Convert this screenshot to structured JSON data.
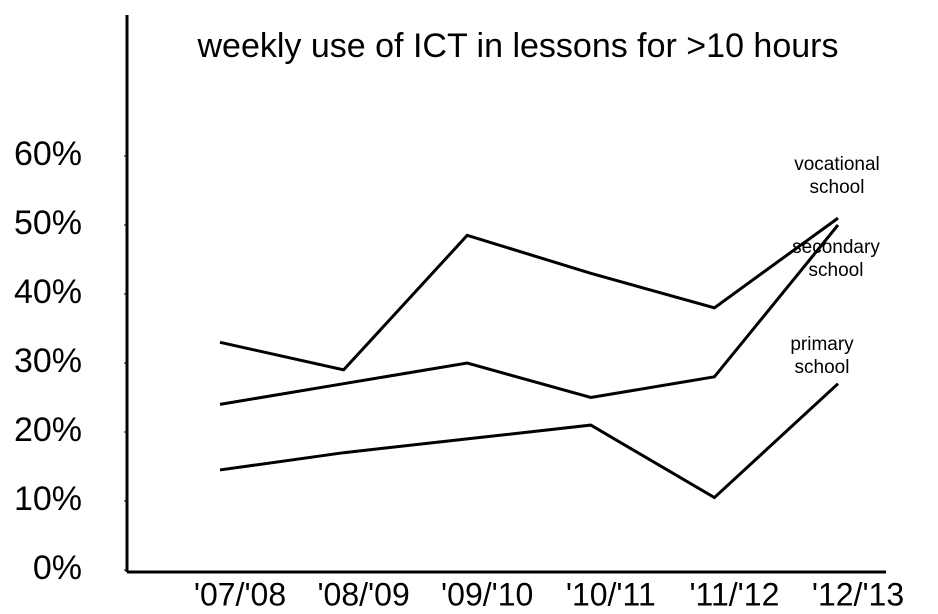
{
  "chart_data": {
    "type": "line",
    "title": "weekly use of ICT in lessons for >10 hours",
    "categories": [
      "'07/'08",
      "'08/'09",
      "'09/'10",
      "'10/'11",
      "'11/'12",
      "'12/'13"
    ],
    "series": [
      {
        "name": "vocational school",
        "color": "#000000",
        "values": [
          33,
          29,
          48.5,
          43,
          38,
          51
        ]
      },
      {
        "name": "secondary school",
        "color": "#000000",
        "values": [
          24,
          27,
          30,
          25,
          28,
          50
        ]
      },
      {
        "name": "primary school",
        "color": "#000000",
        "values": [
          14.5,
          17,
          19,
          21,
          10.5,
          27
        ]
      }
    ],
    "ylim": [
      0,
      80
    ],
    "yticks": [
      {
        "value": 0,
        "label": "0%"
      },
      {
        "value": 10,
        "label": "10%"
      },
      {
        "value": 20,
        "label": "20%"
      },
      {
        "value": 30,
        "label": "30%"
      },
      {
        "value": 40,
        "label": "40%"
      },
      {
        "value": 50,
        "label": "50%"
      },
      {
        "value": 60,
        "label": "60%"
      }
    ],
    "grid": false
  }
}
